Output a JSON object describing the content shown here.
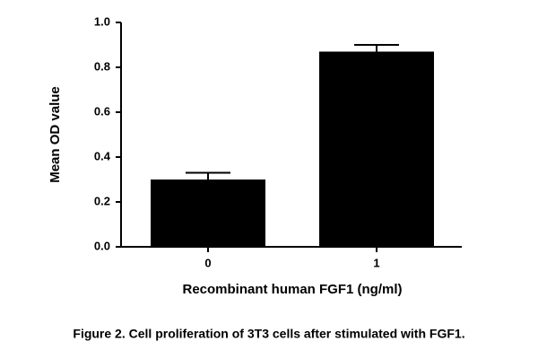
{
  "chart_data": {
    "type": "bar",
    "caption": "Figure 2. Cell proliferation of 3T3 cells after stimulated with FGF1.",
    "x_label": "Recombinant human FGF1 (ng/ml)",
    "y_label": "Mean OD value",
    "categories": [
      "0",
      "1"
    ],
    "values": [
      0.3,
      0.87
    ],
    "errors": [
      0.03,
      0.03
    ],
    "color": "#000000",
    "ylim": [
      0,
      1.0
    ],
    "yticks": [
      {
        "value": 0,
        "label": "0.0"
      },
      0.2,
      0.4,
      0.6,
      0.8,
      {
        "value": 1.0,
        "label": "1.0"
      }
    ]
  }
}
